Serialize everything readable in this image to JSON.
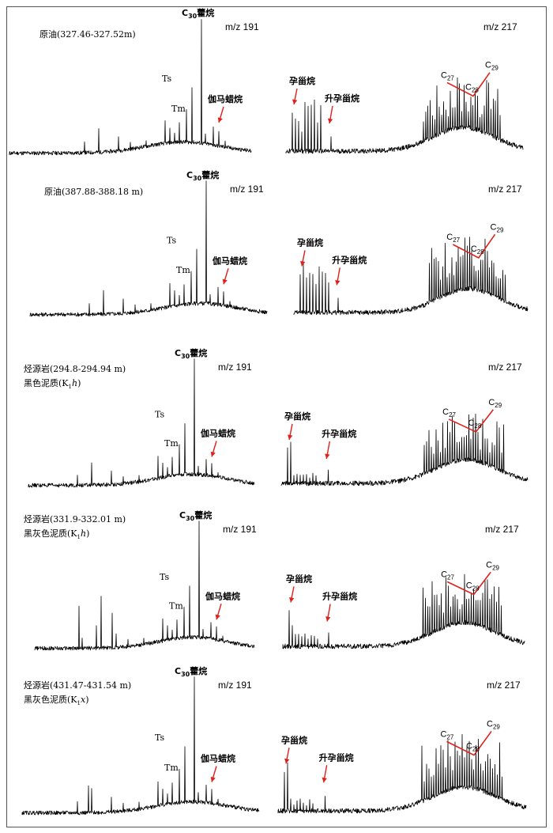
{
  "chart_data": [
    {
      "type": "line",
      "sample": "原油(327.46-327.52m)",
      "sample_line2": "",
      "m191": {
        "label": "m/z  191",
        "peaks": [
          {
            "name": "C30藿烷",
            "prefix": "C",
            "sub": "30",
            "suffix": "藿烷",
            "rt": 0.75
          },
          {
            "name": "Ts",
            "rt": 0.58
          },
          {
            "name": "Tm",
            "rt": 0.63
          },
          {
            "name": "伽马蜡烷",
            "rt": 0.81
          }
        ]
      },
      "m217": {
        "label": "m/z  217",
        "peaks": [
          {
            "name": "孕甾烷",
            "rt": 0.05
          },
          {
            "name": "升孕甾烷",
            "rt": 0.19
          },
          {
            "name": "C27",
            "prefix": "C",
            "sub": "27",
            "rt": 0.68
          },
          {
            "name": "C28",
            "prefix": "C",
            "sub": "28",
            "rt": 0.79
          },
          {
            "name": "C29",
            "prefix": "C",
            "sub": "29",
            "rt": 0.86
          }
        ]
      }
    },
    {
      "type": "line",
      "sample": "原油(387.88-388.18 m)",
      "sample_line2": "",
      "m191": {
        "label": "m/z  191",
        "peaks": [
          {
            "name": "C30藿烷",
            "prefix": "C",
            "sub": "30",
            "suffix": "藿烷",
            "rt": 0.75
          },
          {
            "name": "Ts",
            "rt": 0.58
          },
          {
            "name": "Tm",
            "rt": 0.63
          },
          {
            "name": "伽马蜡烷",
            "rt": 0.81
          }
        ]
      },
      "m217": {
        "label": "m/z  217",
        "peaks": [
          {
            "name": "孕甾烷",
            "rt": 0.05
          },
          {
            "name": "升孕甾烷",
            "rt": 0.19
          },
          {
            "name": "C27",
            "prefix": "C",
            "sub": "27",
            "rt": 0.68
          },
          {
            "name": "C28",
            "prefix": "C",
            "sub": "28",
            "rt": 0.79
          },
          {
            "name": "C29",
            "prefix": "C",
            "sub": "29",
            "rt": 0.86
          }
        ]
      }
    },
    {
      "type": "line",
      "sample": "烃源岩(294.8-294.94 m)",
      "sample_line2": "黑色泥质(K1h)",
      "m191": {
        "label": "m/z  191",
        "peaks": [
          {
            "name": "C30藿烷",
            "prefix": "C",
            "sub": "30",
            "suffix": "藿烷",
            "rt": 0.75
          },
          {
            "name": "Ts",
            "rt": 0.58
          },
          {
            "name": "Tm",
            "rt": 0.63
          },
          {
            "name": "伽马蜡烷",
            "rt": 0.81
          }
        ]
      },
      "m217": {
        "label": "m/z  217",
        "peaks": [
          {
            "name": "孕甾烷",
            "rt": 0.05
          },
          {
            "name": "升孕甾烷",
            "rt": 0.19
          },
          {
            "name": "C27",
            "prefix": "C",
            "sub": "27",
            "rt": 0.68
          },
          {
            "name": "C28",
            "prefix": "C",
            "sub": "28",
            "rt": 0.79
          },
          {
            "name": "C29",
            "prefix": "C",
            "sub": "29",
            "rt": 0.86
          }
        ]
      }
    },
    {
      "type": "line",
      "sample": "烃源岩(331.9-332.01 m)",
      "sample_line2": "黑灰色泥质(K1h)",
      "m191": {
        "label": "m/z  191",
        "peaks": [
          {
            "name": "C30藿烷",
            "prefix": "C",
            "sub": "30",
            "suffix": "藿烷",
            "rt": 0.75
          },
          {
            "name": "Ts",
            "rt": 0.58
          },
          {
            "name": "Tm",
            "rt": 0.63
          },
          {
            "name": "伽马蜡烷",
            "rt": 0.81
          }
        ]
      },
      "m217": {
        "label": "m/z  217",
        "peaks": [
          {
            "name": "孕甾烷",
            "rt": 0.05
          },
          {
            "name": "升孕甾烷",
            "rt": 0.19
          },
          {
            "name": "C27",
            "prefix": "C",
            "sub": "27",
            "rt": 0.68
          },
          {
            "name": "C28",
            "prefix": "C",
            "sub": "28",
            "rt": 0.79
          },
          {
            "name": "C29",
            "prefix": "C",
            "sub": "29",
            "rt": 0.86
          }
        ]
      }
    },
    {
      "type": "line",
      "sample": "烃源岩(431.47-431.54 m)",
      "sample_line2": "黑灰色泥质(K1x)",
      "m191": {
        "label": "m/z  191",
        "peaks": [
          {
            "name": "C30藿烷",
            "prefix": "C",
            "sub": "30",
            "suffix": "藿烷",
            "rt": 0.75
          },
          {
            "name": "Ts",
            "rt": 0.58
          },
          {
            "name": "Tm",
            "rt": 0.63
          },
          {
            "name": "伽马蜡烷",
            "rt": 0.81
          }
        ]
      },
      "m217": {
        "label": "m/z  217",
        "peaks": [
          {
            "name": "孕甾烷",
            "rt": 0.05
          },
          {
            "name": "升孕甾烷",
            "rt": 0.19
          },
          {
            "name": "C27",
            "prefix": "C",
            "sub": "27",
            "rt": 0.68
          },
          {
            "name": "C28",
            "prefix": "C",
            "sub": "28",
            "rt": 0.79
          },
          {
            "name": "C29",
            "prefix": "C",
            "sub": "29",
            "rt": 0.86
          }
        ]
      }
    }
  ],
  "colors": {
    "trace": "#000000",
    "annotation": "#e0201a"
  }
}
